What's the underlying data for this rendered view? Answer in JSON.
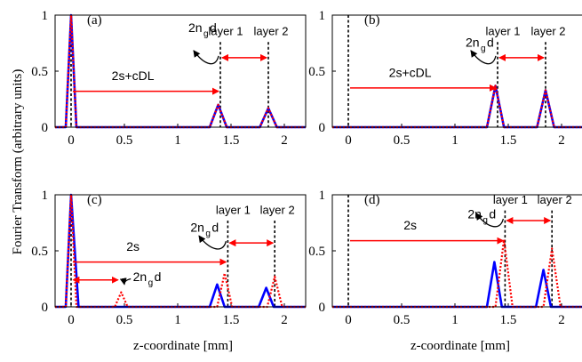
{
  "figure": {
    "ylabel": "Fourier Transform (arbitrary units)",
    "xlabel": "z-coordinate [mm]"
  },
  "colors": {
    "blue": "#0000ff",
    "red": "#ff0000",
    "black": "#000000"
  },
  "chart_data": [
    {
      "id": "a",
      "type": "line",
      "panel_label": "(a)",
      "xlim": [
        -0.15,
        2.2
      ],
      "ylim": [
        0,
        1
      ],
      "xticks": [
        "0",
        "0.5",
        "1",
        "1.5",
        "2"
      ],
      "xtick_values": [
        0,
        0.5,
        1,
        1.5,
        2
      ],
      "yticks": [
        "0",
        "0.5",
        "1"
      ],
      "ytick_values": [
        0,
        0.5,
        1
      ],
      "series": [
        {
          "style": "solid-blue",
          "x": [
            -0.15,
            -0.05,
            0,
            0.05,
            1.3,
            1.38,
            1.46,
            1.77,
            1.85,
            1.93,
            2.2
          ],
          "y": [
            0,
            0,
            1,
            0,
            0,
            0.2,
            0,
            0,
            0.17,
            0,
            0
          ]
        },
        {
          "style": "dotted-red",
          "x": [
            -0.15,
            -0.05,
            0,
            0.05,
            1.3,
            1.38,
            1.46,
            1.77,
            1.85,
            1.93,
            2.2
          ],
          "y": [
            0,
            0,
            1,
            0,
            0,
            0.2,
            0,
            0,
            0.17,
            0,
            0
          ]
        }
      ],
      "vlines": [
        0,
        1.4,
        1.85
      ],
      "labels": {
        "layer1": "layer 1",
        "layer2": "layer 2",
        "gap": "2s+cDL",
        "ngd_main": "2n",
        "ngd_sub": "g",
        "ngd_tail": "d"
      }
    },
    {
      "id": "b",
      "type": "line",
      "panel_label": "(b)",
      "xlim": [
        -0.15,
        2.2
      ],
      "ylim": [
        0,
        1
      ],
      "xticks": [
        "0",
        "0.5",
        "1",
        "1.5",
        "2"
      ],
      "xtick_values": [
        0,
        0.5,
        1,
        1.5,
        2
      ],
      "yticks": [
        "0",
        "0.5",
        "1"
      ],
      "ytick_values": [
        0,
        0.5,
        1
      ],
      "series": [
        {
          "style": "solid-blue",
          "x": [
            -0.15,
            1.3,
            1.38,
            1.46,
            1.77,
            1.85,
            1.93,
            2.2
          ],
          "y": [
            0,
            0,
            0.37,
            0,
            0,
            0.33,
            0,
            0
          ]
        },
        {
          "style": "dotted-red",
          "x": [
            -0.15,
            1.3,
            1.38,
            1.46,
            1.77,
            1.85,
            1.93,
            2.2
          ],
          "y": [
            0,
            0,
            0.37,
            0,
            0,
            0.33,
            0,
            0
          ]
        }
      ],
      "vlines": [
        0,
        1.4,
        1.85
      ],
      "labels": {
        "layer1": "layer 1",
        "layer2": "layer 2",
        "gap": "2s+cDL",
        "ngd_main": "2n",
        "ngd_sub": "g",
        "ngd_tail": "d"
      }
    },
    {
      "id": "c",
      "type": "line",
      "panel_label": "(c)",
      "xlim": [
        -0.15,
        2.2
      ],
      "ylim": [
        0,
        1
      ],
      "xticks": [
        "0",
        "0.5",
        "1",
        "1.5",
        "2"
      ],
      "xtick_values": [
        0,
        0.5,
        1,
        1.5,
        2
      ],
      "yticks": [
        "0",
        "0.5",
        "1"
      ],
      "ytick_values": [
        0,
        0.5,
        1
      ],
      "series": [
        {
          "style": "solid-blue",
          "x": [
            -0.15,
            -0.05,
            0,
            0.07,
            1.3,
            1.37,
            1.44,
            1.76,
            1.83,
            1.9,
            2.2
          ],
          "y": [
            0,
            0,
            1,
            0,
            0,
            0.2,
            0,
            0,
            0.17,
            0,
            0
          ]
        },
        {
          "style": "dotted-red",
          "x": [
            -0.15,
            -0.05,
            0,
            0.05,
            0.41,
            0.47,
            0.53,
            1.37,
            1.44,
            1.51,
            1.84,
            1.91,
            1.98,
            2.2
          ],
          "y": [
            0,
            0,
            1,
            0,
            0,
            0.13,
            0,
            0,
            0.3,
            0,
            0,
            0.27,
            0,
            0
          ]
        }
      ],
      "vlines": [
        0,
        1.47,
        1.91
      ],
      "labels": {
        "layer1": "layer 1",
        "layer2": "layer 2",
        "gap": "2s",
        "ngd_main": "2n",
        "ngd_sub": "g",
        "ngd_tail": "d"
      }
    },
    {
      "id": "d",
      "type": "line",
      "panel_label": "(d)",
      "xlim": [
        -0.15,
        2.2
      ],
      "ylim": [
        0,
        1
      ],
      "xticks": [
        "0",
        "0.5",
        "1",
        "1.5",
        "2"
      ],
      "xtick_values": [
        0,
        0.5,
        1,
        1.5,
        2
      ],
      "yticks": [
        "0",
        "0.5",
        "1"
      ],
      "ytick_values": [
        0,
        0.5,
        1
      ],
      "series": [
        {
          "style": "solid-blue",
          "x": [
            -0.15,
            1.3,
            1.37,
            1.44,
            1.76,
            1.83,
            1.9,
            2.2
          ],
          "y": [
            0,
            0,
            0.4,
            0,
            0,
            0.33,
            0,
            0
          ]
        },
        {
          "style": "dotted-red",
          "x": [
            -0.15,
            1.38,
            1.46,
            1.54,
            1.83,
            1.91,
            1.99,
            2.2
          ],
          "y": [
            0,
            0,
            0.6,
            0,
            0,
            0.52,
            0,
            0
          ]
        }
      ],
      "vlines": [
        0,
        1.47,
        1.91
      ],
      "labels": {
        "layer1": "layer 1",
        "layer2": "layer 2",
        "gap": "2s",
        "ngd_main": "2n",
        "ngd_sub": "g",
        "ngd_tail": "d"
      }
    }
  ]
}
